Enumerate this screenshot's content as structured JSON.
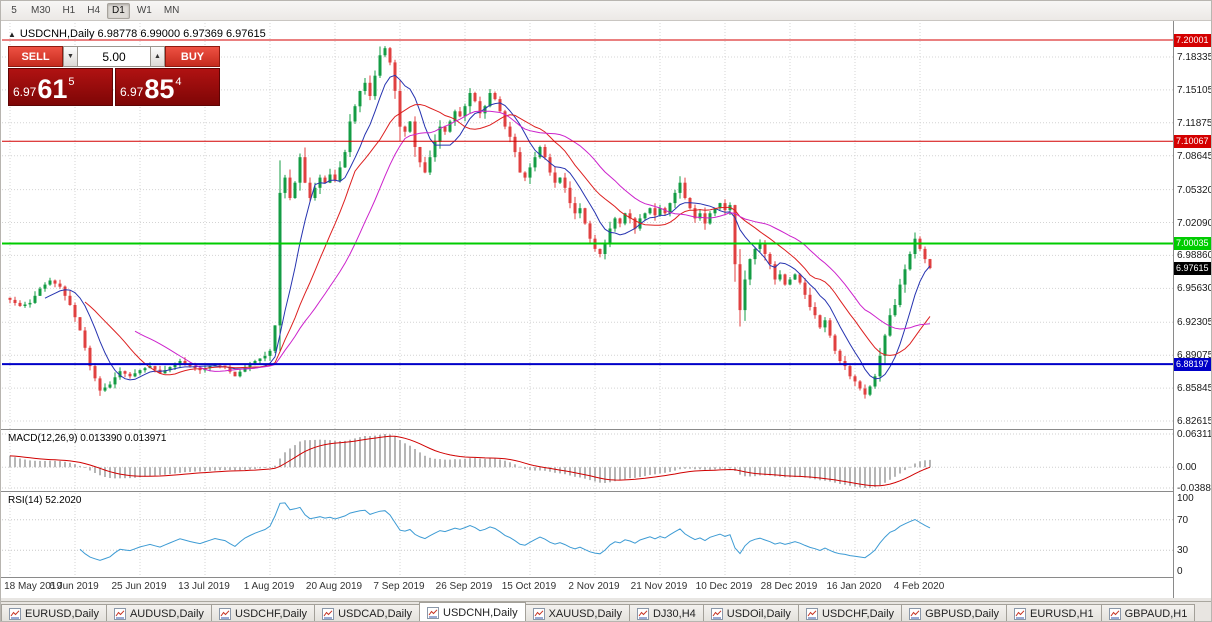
{
  "toolbar": {
    "periods": [
      {
        "label": "5",
        "active": false
      },
      {
        "label": "M30",
        "active": false
      },
      {
        "label": "H1",
        "active": false
      },
      {
        "label": "H4",
        "active": false
      },
      {
        "label": "D1",
        "active": true
      },
      {
        "label": "W1",
        "active": false
      },
      {
        "label": "MN",
        "active": false
      }
    ]
  },
  "chart_header": {
    "collapse_icon": "▲",
    "title_line": "USDCNH,Daily  6.98778 6.99000 6.97369 6.97615"
  },
  "trade_widget": {
    "sell_label": "SELL",
    "buy_label": "BUY",
    "volume": "5.00",
    "spin_down_icon": "▼",
    "spin_up_icon": "▲",
    "sell_price": {
      "big": "6.97",
      "pips": "61",
      "sup": "5"
    },
    "buy_price": {
      "big": "6.97",
      "pips": "85",
      "sup": "4"
    }
  },
  "axis": {
    "price_ticks": [
      "7.18335",
      "7.15105",
      "7.11875",
      "7.08645",
      "7.05320",
      "7.02090",
      "6.98860",
      "6.95630",
      "6.92305",
      "6.89075",
      "6.85845",
      "6.82615"
    ],
    "current_price": "6.97615"
  },
  "levels": [
    {
      "price": "7.20001",
      "color": "#d40000",
      "width": 1
    },
    {
      "price": "7.10067",
      "color": "#d40000",
      "width": 1
    },
    {
      "price": "7.00035",
      "color": "#00cc00",
      "width": 2
    },
    {
      "price": "6.88197",
      "color": "#0000c8",
      "width": 2
    }
  ],
  "macd_panel": {
    "label": "MACD(12,26,9) 0.013390 0.013971",
    "axis_top": "0.063113",
    "axis_zero": "0.00",
    "axis_bottom": "-0.038872"
  },
  "rsi_panel": {
    "label": "RSI(14) 52.2020",
    "axis": [
      "100",
      "70",
      "30",
      "0"
    ]
  },
  "tabs": {
    "active_index": 4,
    "items": [
      {
        "label": "EURUSD,Daily"
      },
      {
        "label": "AUDUSD,Daily"
      },
      {
        "label": "USDCHF,Daily"
      },
      {
        "label": "USDCAD,Daily"
      },
      {
        "label": "USDCNH,Daily"
      },
      {
        "label": "XAUUSD,Daily"
      },
      {
        "label": "DJ30,H4"
      },
      {
        "label": "USDOil,Daily"
      },
      {
        "label": "USDCHF,Daily"
      },
      {
        "label": "GBPUSD,Daily"
      },
      {
        "label": "EURUSD,H1"
      },
      {
        "label": "GBPAUD,H1"
      }
    ]
  },
  "chart_data": {
    "type": "candlestick",
    "symbol": "USDCNH",
    "timeframe": "Daily",
    "ohlc_today": {
      "open": 6.98778,
      "high": 6.99,
      "low": 6.97369,
      "close": 6.97615
    },
    "x_labels": [
      "18 May 2019",
      "6 Jun 2019",
      "25 Jun 2019",
      "13 Jul 2019",
      "1 Aug 2019",
      "20 Aug 2019",
      "7 Sep 2019",
      "26 Sep 2019",
      "15 Oct 2019",
      "2 Nov 2019",
      "21 Nov 2019",
      "10 Dec 2019",
      "28 Dec 2019",
      "16 Jan 2020",
      "4 Feb 2020"
    ],
    "label_every": 13,
    "open_first": 6.947,
    "closes": [
      6.945,
      6.942,
      6.939,
      6.9405,
      6.942,
      6.949,
      6.956,
      6.96,
      6.964,
      6.961,
      6.958,
      6.949,
      6.94,
      6.928,
      6.915,
      6.898,
      6.88,
      6.868,
      6.856,
      6.859,
      6.862,
      6.869,
      6.875,
      6.8725,
      6.87,
      6.873,
      6.876,
      6.878,
      6.88,
      6.8765,
      6.873,
      6.876,
      6.879,
      6.882,
      6.885,
      6.8825,
      6.88,
      6.878,
      6.876,
      6.878,
      6.88,
      6.882,
      6.8805,
      6.879,
      6.8745,
      6.87,
      6.8745,
      6.879,
      6.882,
      6.885,
      6.8875,
      6.89,
      6.895,
      6.92,
      7.05,
      7.065,
      7.045,
      7.06,
      7.085,
      7.06,
      7.045,
      7.055,
      7.065,
      7.06,
      7.068,
      7.062,
      7.075,
      7.09,
      7.12,
      7.135,
      7.15,
      7.158,
      7.145,
      7.165,
      7.185,
      7.192,
      7.178,
      7.15,
      7.115,
      7.11,
      7.12,
      7.095,
      7.08,
      7.07,
      7.085,
      7.1,
      7.115,
      7.11,
      7.12,
      7.13,
      7.125,
      7.135,
      7.148,
      7.14,
      7.128,
      7.135,
      7.148,
      7.142,
      7.13,
      7.115,
      7.105,
      7.09,
      7.07,
      7.065,
      7.075,
      7.085,
      7.095,
      7.085,
      7.07,
      7.06,
      7.065,
      7.055,
      7.04,
      7.03,
      7.035,
      7.02,
      7.005,
      6.995,
      6.99,
      7.0,
      7.015,
      7.025,
      7.02,
      7.03,
      7.025,
      7.015,
      7.025,
      7.03,
      7.035,
      7.028,
      7.035,
      7.03,
      7.04,
      7.05,
      7.06,
      7.045,
      7.035,
      7.025,
      7.03,
      7.02,
      7.03,
      7.035,
      7.04,
      7.033,
      7.038,
      6.98,
      6.935,
      6.965,
      6.985,
      6.995,
      7.0,
      6.99,
      6.98,
      6.965,
      6.97,
      6.96,
      6.965,
      6.97,
      6.962,
      6.95,
      6.938,
      6.93,
      6.918,
      6.925,
      6.91,
      6.895,
      6.885,
      6.88,
      6.87,
      6.865,
      6.858,
      6.852,
      6.86,
      6.87,
      6.89,
      6.91,
      6.93,
      6.94,
      6.96,
      6.975,
      6.99,
      7.005,
      6.995,
      6.985,
      6.97615
    ],
    "y_range": {
      "top": 7.2108,
      "bottom": 6.8183
    },
    "candle_colors": {
      "up": "#149c44",
      "down": "#e04040"
    },
    "moving_averages": [
      {
        "period": 8,
        "color": "#2633b0"
      },
      {
        "period": 16,
        "color": "#dd2020"
      },
      {
        "period": 26,
        "color": "#cc22cc"
      }
    ],
    "indicators": {
      "macd": {
        "fast": 12,
        "slow": 26,
        "signal": 9,
        "histogram_color": "#b6b6b6",
        "signal_color": "#d00000",
        "current_main": 0.01339,
        "current_signal": 0.013971
      },
      "rsi": {
        "period": 14,
        "color": "#3d9bd4",
        "current": 52.202,
        "levels": [
          70,
          30
        ]
      }
    }
  }
}
